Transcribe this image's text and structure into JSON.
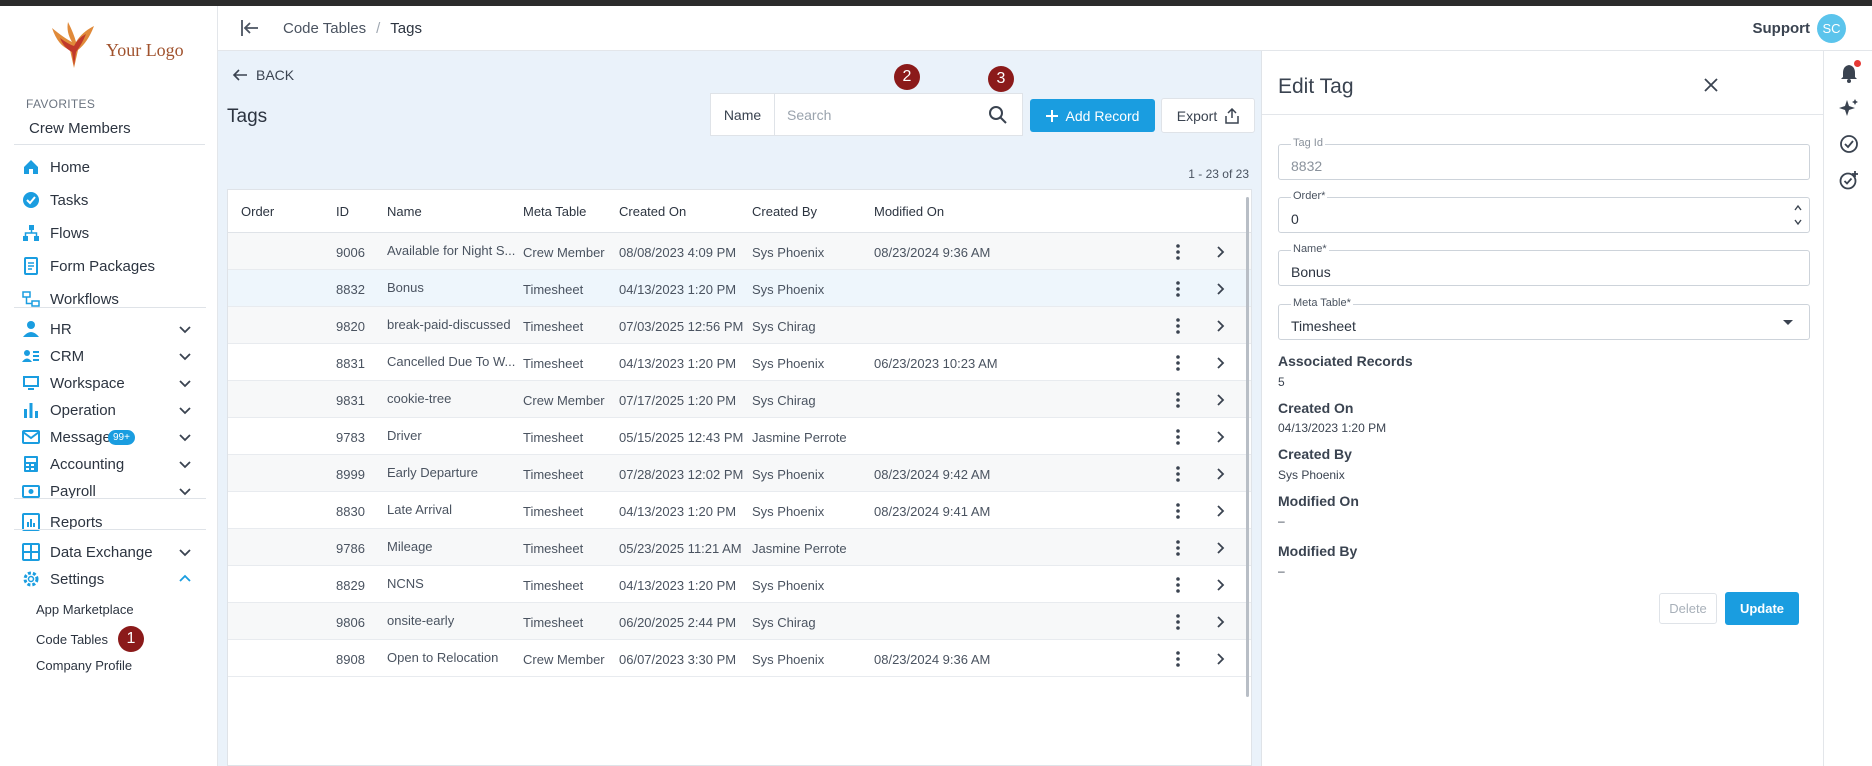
{
  "brand": {
    "logo_text": "Your Logo",
    "accent": "#1a9de0",
    "step_color": "#8b1a1a"
  },
  "sidebar": {
    "favorites_label": "FAVORITES",
    "favorites": [
      "Crew Members"
    ],
    "items": [
      {
        "label": "Home",
        "icon": "home-icon",
        "expandable": false
      },
      {
        "label": "Tasks",
        "icon": "check-circle-icon",
        "expandable": false
      },
      {
        "label": "Flows",
        "icon": "flow-icon",
        "expandable": false
      },
      {
        "label": "Form Packages",
        "icon": "form-icon",
        "expandable": false
      },
      {
        "label": "Workflows",
        "icon": "workflow-icon",
        "expandable": false
      },
      {
        "label": "HR",
        "icon": "person-icon",
        "expandable": true
      },
      {
        "label": "CRM",
        "icon": "contacts-icon",
        "expandable": true
      },
      {
        "label": "Workspace",
        "icon": "workspace-icon",
        "expandable": true
      },
      {
        "label": "Operation",
        "icon": "bar-chart-icon",
        "expandable": true
      },
      {
        "label": "Messages",
        "icon": "mail-icon",
        "expandable": true,
        "badge": "99+"
      },
      {
        "label": "Accounting",
        "icon": "accounting-icon",
        "expandable": true
      },
      {
        "label": "Payroll",
        "icon": "payroll-icon",
        "expandable": true
      },
      {
        "label": "Reports",
        "icon": "reports-icon",
        "expandable": false
      },
      {
        "label": "Data Exchange",
        "icon": "grid-icon",
        "expandable": true
      },
      {
        "label": "Settings",
        "icon": "gear-icon",
        "expandable": true,
        "expanded": true
      }
    ],
    "settings_children": [
      "App Marketplace",
      "Code Tables",
      "Company Profile"
    ]
  },
  "header": {
    "breadcrumb": [
      "Code Tables",
      "Tags"
    ],
    "breadcrumb_sep": "/",
    "user_label": "Support",
    "avatar_initials": "SC"
  },
  "main": {
    "back_label": "BACK",
    "title": "Tags",
    "search": {
      "label": "Name",
      "placeholder": "Search"
    },
    "add_label": "Add Record",
    "export_label": "Export",
    "count_text": "1 - 23 of 23",
    "steps": [
      "1",
      "2",
      "3"
    ],
    "columns": [
      "Order",
      "ID",
      "Name",
      "Meta Table",
      "Created On",
      "Created By",
      "Modified On"
    ],
    "rows": [
      {
        "order": "",
        "id": "9006",
        "name": "Available for Night S...",
        "meta": "Crew Member",
        "created_on": "08/08/2023 4:09 PM",
        "created_by": "Sys Phoenix",
        "modified_on": "08/23/2024 9:36 AM"
      },
      {
        "order": "",
        "id": "8832",
        "name": "Bonus",
        "meta": "Timesheet",
        "created_on": "04/13/2023 1:20 PM",
        "created_by": "Sys Phoenix",
        "modified_on": ""
      },
      {
        "order": "",
        "id": "9820",
        "name": "break-paid-discussed",
        "meta": "Timesheet",
        "created_on": "07/03/2025 12:56 PM",
        "created_by": "Sys Chirag",
        "modified_on": ""
      },
      {
        "order": "",
        "id": "8831",
        "name": "Cancelled Due To W...",
        "meta": "Timesheet",
        "created_on": "04/13/2023 1:20 PM",
        "created_by": "Sys Phoenix",
        "modified_on": "06/23/2023 10:23 AM"
      },
      {
        "order": "",
        "id": "9831",
        "name": "cookie-tree",
        "meta": "Crew Member",
        "created_on": "07/17/2025 1:20 PM",
        "created_by": "Sys Chirag",
        "modified_on": ""
      },
      {
        "order": "",
        "id": "9783",
        "name": "Driver",
        "meta": "Timesheet",
        "created_on": "05/15/2025 12:43 PM",
        "created_by": "Jasmine Perrote",
        "modified_on": ""
      },
      {
        "order": "",
        "id": "8999",
        "name": "Early Departure",
        "meta": "Timesheet",
        "created_on": "07/28/2023 12:02 PM",
        "created_by": "Sys Phoenix",
        "modified_on": "08/23/2024 9:42 AM"
      },
      {
        "order": "",
        "id": "8830",
        "name": "Late Arrival",
        "meta": "Timesheet",
        "created_on": "04/13/2023 1:20 PM",
        "created_by": "Sys Phoenix",
        "modified_on": "08/23/2024 9:41 AM"
      },
      {
        "order": "",
        "id": "9786",
        "name": "Mileage",
        "meta": "Timesheet",
        "created_on": "05/23/2025 11:21 AM",
        "created_by": "Jasmine Perrote",
        "modified_on": ""
      },
      {
        "order": "",
        "id": "8829",
        "name": "NCNS",
        "meta": "Timesheet",
        "created_on": "04/13/2023 1:20 PM",
        "created_by": "Sys Phoenix",
        "modified_on": ""
      },
      {
        "order": "",
        "id": "9806",
        "name": "onsite-early",
        "meta": "Timesheet",
        "created_on": "06/20/2025 2:44 PM",
        "created_by": "Sys Chirag",
        "modified_on": ""
      },
      {
        "order": "",
        "id": "8908",
        "name": "Open to Relocation",
        "meta": "Crew Member",
        "created_on": "06/07/2023 3:30 PM",
        "created_by": "Sys Phoenix",
        "modified_on": "08/23/2024 9:36 AM"
      }
    ]
  },
  "panel": {
    "title": "Edit Tag",
    "fields": {
      "tag_id": {
        "label": "Tag Id",
        "value": "8832"
      },
      "order": {
        "label": "Order*",
        "value": "0"
      },
      "name": {
        "label": "Name*",
        "value": "Bonus"
      },
      "meta_table": {
        "label": "Meta Table*",
        "value": "Timesheet"
      }
    },
    "info": [
      {
        "label": "Associated Records",
        "value": "5"
      },
      {
        "label": "Created On",
        "value": "04/13/2023 1:20 PM"
      },
      {
        "label": "Created By",
        "value": "Sys Phoenix"
      },
      {
        "label": "Modified On",
        "value": "–"
      },
      {
        "label": "Modified By",
        "value": "–"
      }
    ],
    "delete_label": "Delete",
    "update_label": "Update"
  }
}
